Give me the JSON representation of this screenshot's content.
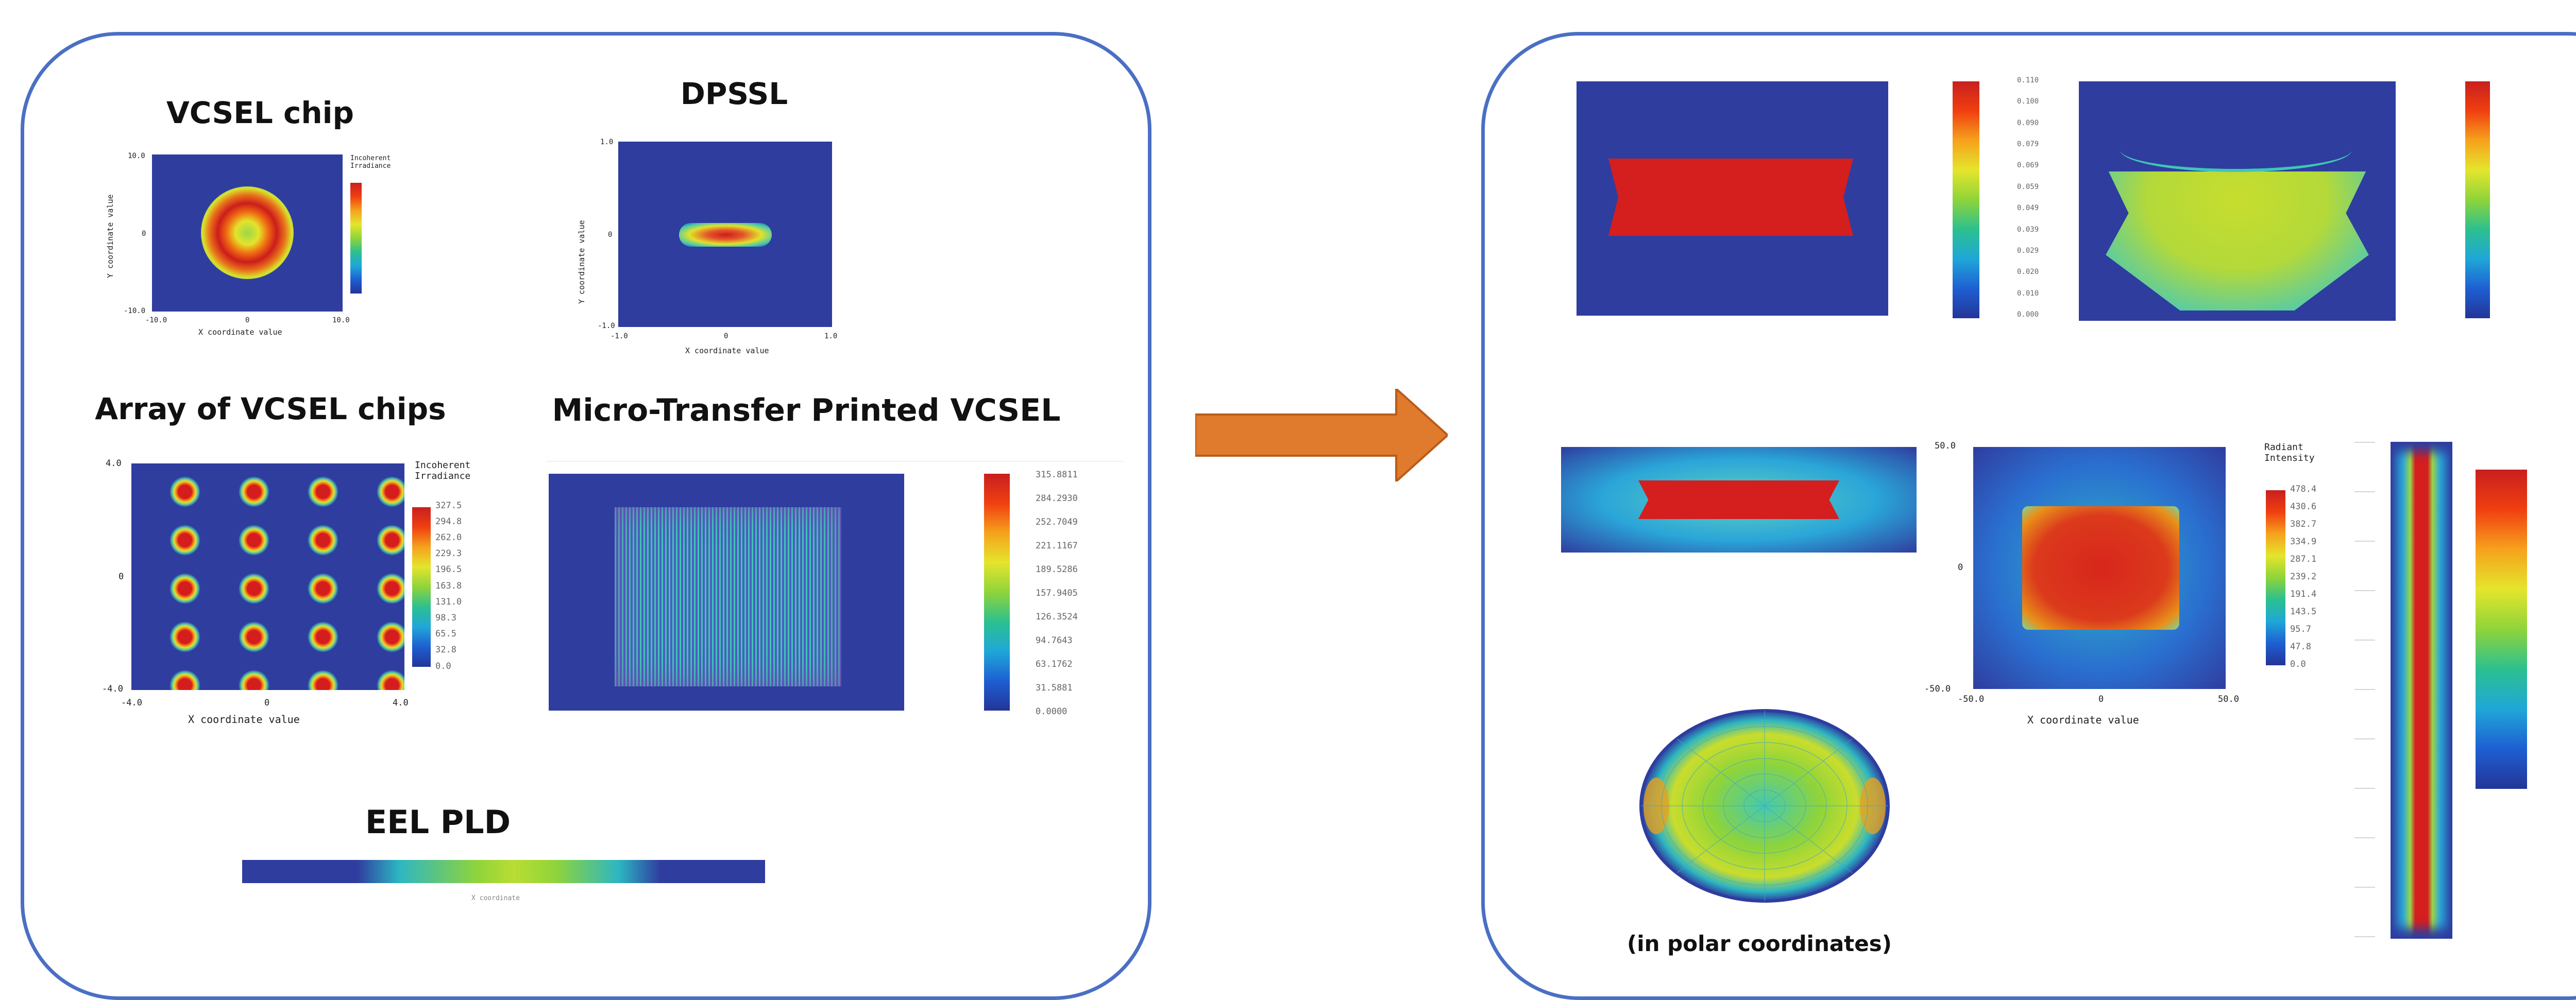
{
  "left_panel": {
    "vcsel_chip": {
      "title": "VCSEL chip",
      "x_ticks": [
        "-10.0",
        "0",
        "10.0"
      ],
      "y_ticks": [
        "10.0",
        "0",
        "-10.0"
      ],
      "xlabel": "X coordinate value",
      "ylabel": "Y coordinate value",
      "legend": "Incoherent Irradiance"
    },
    "dpssl": {
      "title": "DPSSL",
      "x_ticks": [
        "-1.0",
        "0",
        "1.0"
      ],
      "y_ticks": [
        "1.0",
        "0",
        "-1.0"
      ],
      "xlabel": "X coordinate value",
      "ylabel": "Y coordinate value"
    },
    "array": {
      "title": "Array of VCSEL chips",
      "x_ticks": [
        "-4.0",
        "0",
        "4.0"
      ],
      "y_ticks": [
        "4.0",
        "0",
        "-4.0"
      ],
      "xlabel": "X coordinate value",
      "legend_title": "Incoherent Irradiance",
      "scale": [
        "327.5",
        "294.8",
        "262.0",
        "229.3",
        "196.5",
        "163.8",
        "131.0",
        "98.3",
        "65.5",
        "32.8",
        "0.0"
      ]
    },
    "mtp_vcsel": {
      "title": "Micro-Transfer Printed VCSEL",
      "scale": [
        "315.8811",
        "284.2930",
        "252.7049",
        "221.1167",
        "189.5286",
        "157.9405",
        "126.3524",
        "94.7643",
        "63.1762",
        "31.5881",
        "0.0000"
      ]
    },
    "eel_pld": {
      "title": "EEL PLD",
      "xlabel": "X coordinate"
    }
  },
  "arrow": {
    "color": "#e07a2c"
  },
  "right_panel": {
    "top_scale_1": [
      "0.110",
      "0.100",
      "0.090",
      "0.079",
      "0.069",
      "0.059",
      "0.049",
      "0.039",
      "0.029",
      "0.020",
      "0.010",
      "0.000"
    ],
    "middle_map": {
      "x_ticks": [
        "-50.0",
        "0",
        "50.0"
      ],
      "y_ticks": [
        "50.0",
        "0",
        "-50.0"
      ],
      "xlabel": "X coordinate value",
      "legend_title": "Radiant Intensity",
      "scale": [
        "478.4",
        "430.6",
        "382.7",
        "334.9",
        "287.1",
        "239.2",
        "191.4",
        "143.5",
        "95.7",
        "47.8",
        "0.0"
      ]
    },
    "polar_caption": "(in polar coordinates)"
  },
  "colors": {
    "panel_border": "#4a6fc4",
    "field_blue": "#2f3d9f",
    "arrow": "#e07a2c"
  }
}
